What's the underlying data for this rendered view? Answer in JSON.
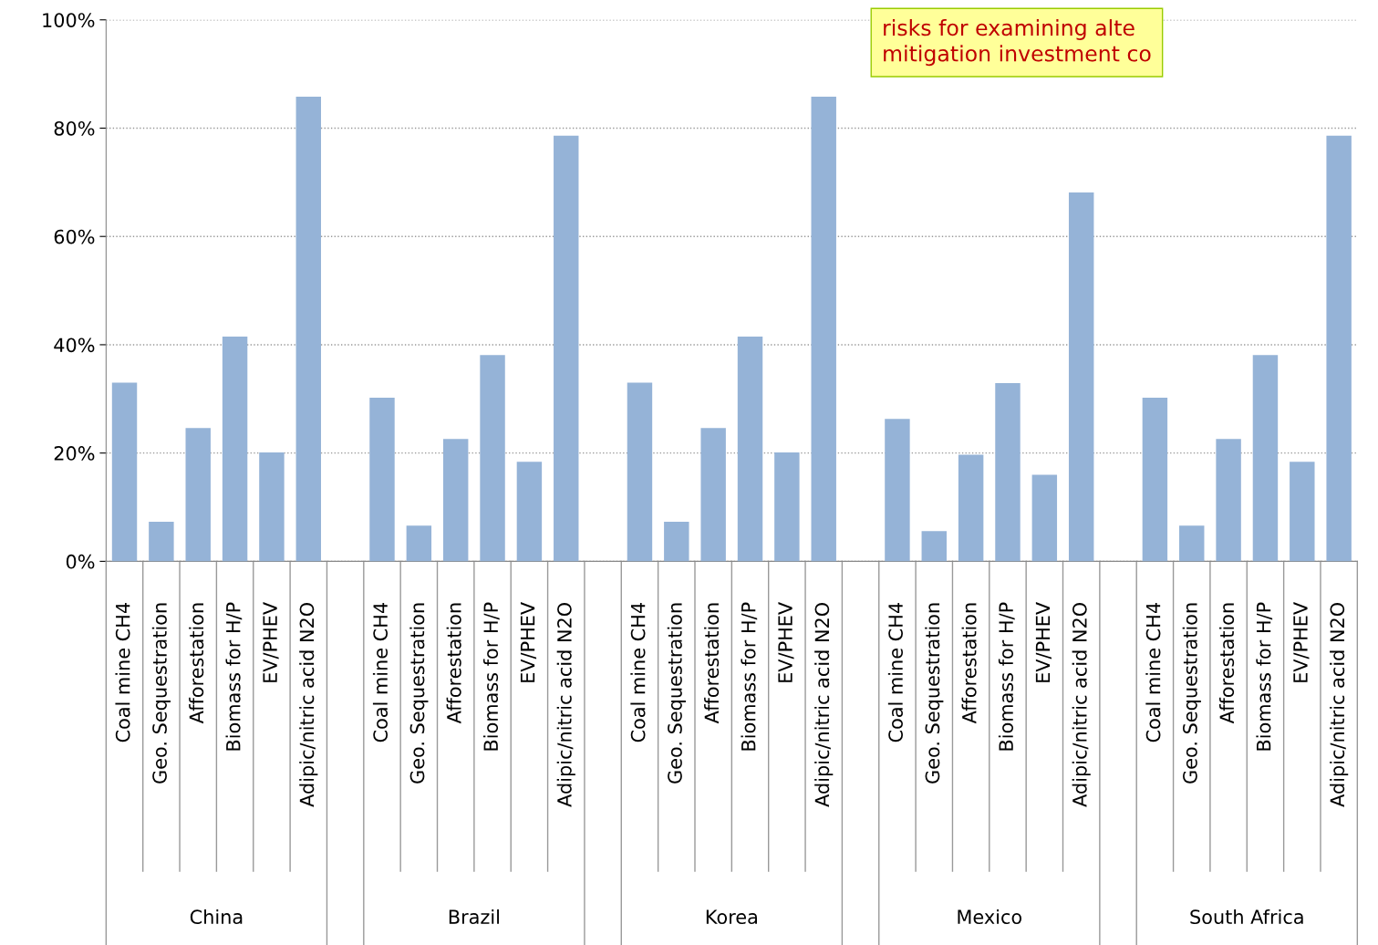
{
  "chart_data": {
    "type": "bar",
    "categories": [
      "Coal mine CH4",
      "Geo. Sequestration",
      "Afforestation",
      "Biomass for H/P",
      "EV/PHEV",
      "Adipic/nitric acid N2O",
      null,
      "Coal mine CH4",
      "Geo. Sequestration",
      "Afforestation",
      "Biomass for H/P",
      "EV/PHEV",
      "Adipic/nitric acid N2O",
      null,
      "Coal mine CH4",
      "Geo. Sequestration",
      "Afforestation",
      "Biomass for H/P",
      "EV/PHEV",
      "Adipic/nitric acid N2O",
      null,
      "Coal mine CH4",
      "Geo. Sequestration",
      "Afforestation",
      "Biomass for H/P",
      "EV/PHEV",
      "Adipic/nitric acid N2O",
      null,
      "Coal mine CH4",
      "Geo. Sequestration",
      "Afforestation",
      "Biomass for H/P",
      "EV/PHEV",
      "Adipic/nitric acid N2O"
    ],
    "values": [
      33,
      7.3,
      24.6,
      41.5,
      20.1,
      85.8,
      null,
      30.2,
      6.6,
      22.6,
      38.1,
      18.4,
      78.6,
      null,
      33,
      7.3,
      24.6,
      41.5,
      20.1,
      85.8,
      null,
      26.3,
      5.6,
      19.7,
      32.9,
      16,
      68.1,
      null,
      30.2,
      6.6,
      22.6,
      38.1,
      18.4,
      78.6
    ],
    "color": "#95b3d7",
    "ylim": [
      0,
      100
    ],
    "yticks": [
      {
        "value": 0,
        "label": "0%"
      },
      {
        "value": 20,
        "label": "20%"
      },
      {
        "value": 40,
        "label": "40%"
      },
      {
        "value": 60,
        "label": "60%"
      },
      {
        "value": 80,
        "label": "80%"
      },
      {
        "value": 100,
        "label": "100%"
      }
    ],
    "grid": "y",
    "annotations": [
      "risks for examining alte\nmitigation investment co",
      "China",
      "Brazil",
      "Korea",
      "Mexico",
      "South Africa"
    ]
  }
}
